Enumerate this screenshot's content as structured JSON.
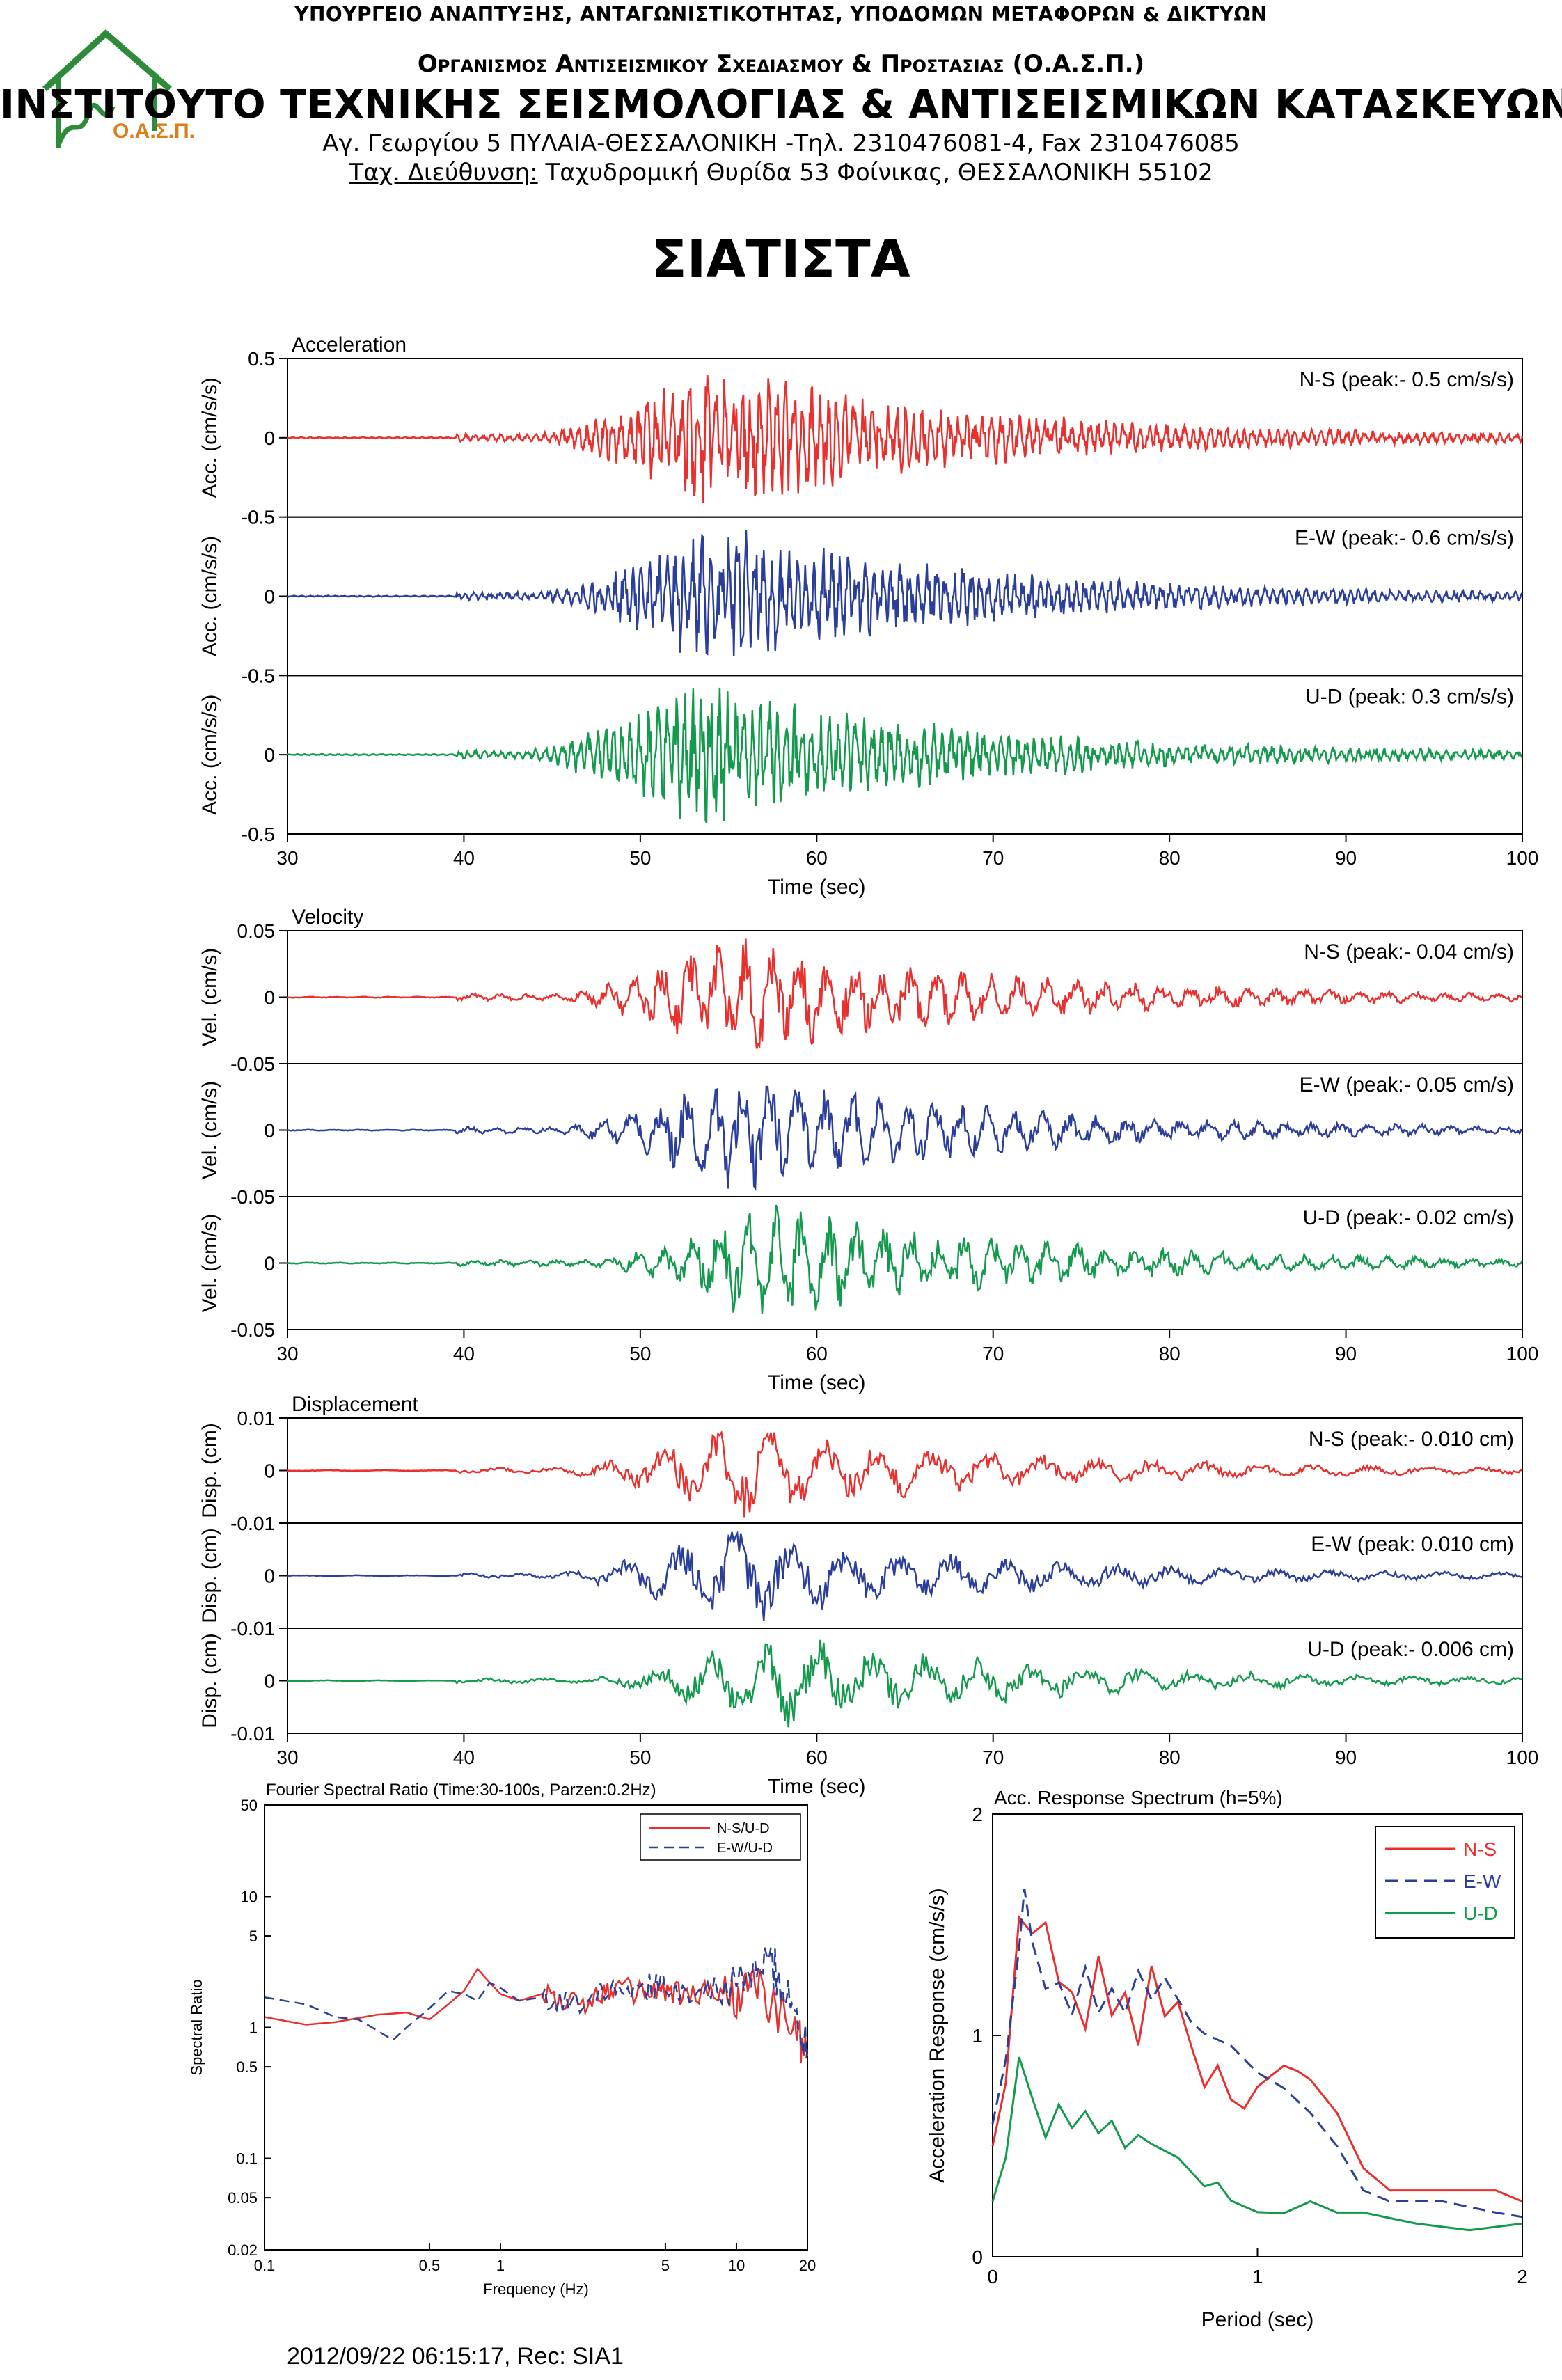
{
  "header": {
    "ministry": "ΥΠΟΥΡΓΕΙΟ ΑΝΑΠΤΥΞΗΣ, ΑΝΤΑΓΩΝΙΣΤΙΚΟΤΗΤΑΣ, ΥΠΟΔΟΜΩΝ ΜΕΤΑΦΟΡΩΝ & ΔΙΚΤΥΩΝ",
    "organization": "Οργανισμος Αντισεισμικου Σχεδιασμου & Προστασιας (Ο.Α.Σ.Π.)",
    "institute": "ΙΝΣΤΙΤΟΥΤΟ ΤΕΧΝΙΚΗΣ ΣΕΙΣΜΟΛΟΓΙΑΣ & ΑΝΤΙΣΕΙΣΜΙΚΩΝ ΚΑΤΑΣΚΕΥΩΝ",
    "address": "Αγ. Γεωργίου 5 ΠΥΛΑΙΑ-ΘΕΣΣΑΛΟΝΙΚΗ -Τηλ. 2310476081-4,  Fax 2310476085",
    "postal_label": "Ταχ. Διεύθυνση:",
    "postal_value": " Ταχυδρομική Θυρίδα 53 Φοίνικας, ΘΕΣΣΑΛΟΝΙΚΗ 55102",
    "logo_text": "Ο.Α.Σ.Π."
  },
  "station": "ΣΙΑΤΙΣΤΑ",
  "footer": "2012/09/22 06:15:17, Rec: SIA1",
  "colors": {
    "ns": "#e8302f",
    "ew": "#2b3f9a",
    "ud": "#139a4c",
    "logo": "#2e8b3a",
    "logo_text": "#e07b1a"
  },
  "chart_data": [
    {
      "type": "line",
      "title": "Acceleration",
      "xlabel": "Time (sec)",
      "ylabel": "Acc. (cm/s/s)",
      "xlim": [
        30,
        100
      ],
      "xticks": [
        "30",
        "40",
        "50",
        "60",
        "70",
        "80",
        "90",
        "100"
      ],
      "ylim": [
        -0.5,
        0.5
      ],
      "ytick_labels": [
        "0.5",
        "0",
        "-0.5"
      ],
      "grid": false,
      "series": [
        {
          "name": "N-S",
          "label": "N-S (peak:- 0.5 cm/s/s)",
          "peak": -0.5,
          "onset": 39.5,
          "center": 55,
          "color": "#e8302f"
        },
        {
          "name": "E-W",
          "label": "E-W (peak:- 0.6 cm/s/s)",
          "peak": -0.6,
          "onset": 39.5,
          "center": 55,
          "color": "#2b3f9a"
        },
        {
          "name": "U-D",
          "label": "U-D (peak: 0.3 cm/s/s)",
          "peak": 0.3,
          "onset": 39.5,
          "center": 54,
          "color": "#139a4c"
        }
      ]
    },
    {
      "type": "line",
      "title": "Velocity",
      "xlabel": "Time (sec)",
      "ylabel": "Vel. (cm/s)",
      "xlim": [
        30,
        100
      ],
      "xticks": [
        "30",
        "40",
        "50",
        "60",
        "70",
        "80",
        "90",
        "100"
      ],
      "ylim": [
        -0.05,
        0.05
      ],
      "ytick_labels": [
        "0.05",
        "0",
        "-0.05"
      ],
      "grid": false,
      "series": [
        {
          "name": "N-S",
          "label": "N-S (peak:- 0.04 cm/s)",
          "peak": -0.04,
          "onset": 39.5,
          "center": 56,
          "color": "#e8302f"
        },
        {
          "name": "E-W",
          "label": "E-W (peak:- 0.05 cm/s)",
          "peak": -0.05,
          "onset": 39.5,
          "center": 56,
          "color": "#2b3f9a"
        },
        {
          "name": "U-D",
          "label": "U-D (peak:- 0.02 cm/s)",
          "peak": -0.02,
          "onset": 39.5,
          "center": 58,
          "color": "#139a4c"
        }
      ]
    },
    {
      "type": "line",
      "title": "Displacement",
      "xlabel": "Time (sec)",
      "ylabel": "Disp. (cm)",
      "xlim": [
        30,
        100
      ],
      "xticks": [
        "30",
        "40",
        "50",
        "60",
        "70",
        "80",
        "90",
        "100"
      ],
      "ylim": [
        -0.01,
        0.01
      ],
      "ytick_labels": [
        "0.01",
        "0",
        "-0.01"
      ],
      "grid": false,
      "series": [
        {
          "name": "N-S",
          "label": "N-S (peak:- 0.010 cm)",
          "peak": -0.01,
          "onset": 39.5,
          "center": 56,
          "color": "#e8302f"
        },
        {
          "name": "E-W",
          "label": "E-W (peak: 0.010 cm)",
          "peak": 0.01,
          "onset": 39.5,
          "center": 56,
          "color": "#2b3f9a"
        },
        {
          "name": "U-D",
          "label": "U-D (peak:- 0.006 cm)",
          "peak": -0.006,
          "onset": 39.5,
          "center": 58,
          "color": "#139a4c"
        }
      ]
    },
    {
      "type": "line",
      "title": "Fourier Spectral Ratio (Time:30-100s, Parzen:0.2Hz)",
      "xlabel": "Frequency (Hz)",
      "ylabel": "Spectral Ratio",
      "xscale": "log",
      "yscale": "log",
      "xlim": [
        0.1,
        20
      ],
      "ylim": [
        0.02,
        50
      ],
      "xtick_values": [
        0.1,
        0.5,
        1,
        5,
        10,
        20
      ],
      "xtick_labels": [
        "0.1",
        "0.5",
        "1",
        "5",
        "10",
        "20"
      ],
      "ytick_values": [
        50,
        10,
        5,
        1,
        0.5,
        0.1,
        0.05,
        0.02
      ],
      "ytick_labels": [
        "50",
        "10",
        "5",
        "1",
        "0.5",
        "0.1",
        "0.05",
        "0.02"
      ],
      "legend_position": "top-right",
      "series": [
        {
          "name": "N-S/U-D",
          "color": "#e8302f",
          "dash": false,
          "points": [
            [
              0.1,
              1.2
            ],
            [
              0.15,
              1.05
            ],
            [
              0.2,
              1.1
            ],
            [
              0.3,
              1.25
            ],
            [
              0.4,
              1.3
            ],
            [
              0.5,
              1.15
            ],
            [
              0.6,
              1.5
            ],
            [
              0.7,
              1.9
            ],
            [
              0.8,
              2.8
            ],
            [
              0.9,
              2.2
            ],
            [
              1.0,
              1.8
            ],
            [
              1.2,
              1.6
            ],
            [
              1.5,
              1.8
            ],
            [
              2.0,
              1.5
            ],
            [
              2.5,
              1.7
            ],
            [
              3.0,
              2.0
            ],
            [
              4.0,
              1.8
            ],
            [
              5.0,
              1.9
            ],
            [
              6.0,
              1.7
            ],
            [
              8.0,
              1.9
            ],
            [
              10.0,
              1.6
            ],
            [
              12.0,
              2.1
            ],
            [
              15.0,
              1.3
            ],
            [
              18.0,
              0.9
            ],
            [
              20.0,
              0.6
            ]
          ]
        },
        {
          "name": "E-W/U-D",
          "color": "#2b3f9a",
          "dash": true,
          "points": [
            [
              0.1,
              1.7
            ],
            [
              0.15,
              1.5
            ],
            [
              0.2,
              1.2
            ],
            [
              0.25,
              1.15
            ],
            [
              0.3,
              0.95
            ],
            [
              0.35,
              0.8
            ],
            [
              0.4,
              1.0
            ],
            [
              0.5,
              1.4
            ],
            [
              0.6,
              1.9
            ],
            [
              0.7,
              1.8
            ],
            [
              0.8,
              1.6
            ],
            [
              0.9,
              2.2
            ],
            [
              1.0,
              2.0
            ],
            [
              1.2,
              1.6
            ],
            [
              1.5,
              1.7
            ],
            [
              2.0,
              1.5
            ],
            [
              3.0,
              2.2
            ],
            [
              4.0,
              2.0
            ],
            [
              5.0,
              2.1
            ],
            [
              7.0,
              1.8
            ],
            [
              10.0,
              2.0
            ],
            [
              12.0,
              2.6
            ],
            [
              14.0,
              3.2
            ],
            [
              16.0,
              1.8
            ],
            [
              18.0,
              1.2
            ],
            [
              20.0,
              0.7
            ]
          ]
        }
      ]
    },
    {
      "type": "line",
      "title": "Acc. Response Spectrum (h=5%)",
      "xlabel": "Period (sec)",
      "ylabel": "Acceleration Response (cm/s/s)",
      "xlim": [
        0,
        2
      ],
      "ylim": [
        0,
        2
      ],
      "xtick_labels": [
        "0",
        "1",
        "2"
      ],
      "ytick_labels": [
        "2",
        "1",
        "0"
      ],
      "legend_position": "top-right",
      "series": [
        {
          "name": "N-S",
          "color": "#e8302f",
          "dash": false,
          "points": [
            [
              0.0,
              0.5
            ],
            [
              0.05,
              0.8
            ],
            [
              0.1,
              1.55
            ],
            [
              0.15,
              1.45
            ],
            [
              0.2,
              1.5
            ],
            [
              0.25,
              1.25
            ],
            [
              0.3,
              1.2
            ],
            [
              0.35,
              1.05
            ],
            [
              0.4,
              1.35
            ],
            [
              0.45,
              1.1
            ],
            [
              0.5,
              1.2
            ],
            [
              0.55,
              0.95
            ],
            [
              0.6,
              1.3
            ],
            [
              0.65,
              1.1
            ],
            [
              0.7,
              1.15
            ],
            [
              0.75,
              0.95
            ],
            [
              0.8,
              0.75
            ],
            [
              0.85,
              0.85
            ],
            [
              0.9,
              0.7
            ],
            [
              0.95,
              0.65
            ],
            [
              1.0,
              0.75
            ],
            [
              1.05,
              0.8
            ],
            [
              1.1,
              0.85
            ],
            [
              1.15,
              0.85
            ],
            [
              1.2,
              0.8
            ],
            [
              1.3,
              0.65
            ],
            [
              1.4,
              0.4
            ],
            [
              1.5,
              0.3
            ],
            [
              1.7,
              0.3
            ],
            [
              1.9,
              0.3
            ],
            [
              2.0,
              0.25
            ]
          ]
        },
        {
          "name": "E-W",
          "color": "#2b3f9a",
          "dash": true,
          "points": [
            [
              0.0,
              0.6
            ],
            [
              0.05,
              0.9
            ],
            [
              0.1,
              1.4
            ],
            [
              0.12,
              1.65
            ],
            [
              0.15,
              1.4
            ],
            [
              0.2,
              1.2
            ],
            [
              0.25,
              1.25
            ],
            [
              0.3,
              1.1
            ],
            [
              0.35,
              1.3
            ],
            [
              0.4,
              1.1
            ],
            [
              0.45,
              1.2
            ],
            [
              0.5,
              1.1
            ],
            [
              0.55,
              1.3
            ],
            [
              0.6,
              1.15
            ],
            [
              0.65,
              1.25
            ],
            [
              0.7,
              1.15
            ],
            [
              0.75,
              1.05
            ],
            [
              0.8,
              1.0
            ],
            [
              0.9,
              0.95
            ],
            [
              1.0,
              0.85
            ],
            [
              1.1,
              0.75
            ],
            [
              1.2,
              0.65
            ],
            [
              1.3,
              0.5
            ],
            [
              1.4,
              0.3
            ],
            [
              1.5,
              0.25
            ],
            [
              1.7,
              0.25
            ],
            [
              1.9,
              0.2
            ],
            [
              2.0,
              0.18
            ]
          ]
        },
        {
          "name": "U-D",
          "color": "#139a4c",
          "dash": false,
          "points": [
            [
              0.0,
              0.25
            ],
            [
              0.05,
              0.45
            ],
            [
              0.1,
              0.9
            ],
            [
              0.15,
              0.7
            ],
            [
              0.2,
              0.55
            ],
            [
              0.25,
              0.7
            ],
            [
              0.3,
              0.6
            ],
            [
              0.35,
              0.65
            ],
            [
              0.4,
              0.55
            ],
            [
              0.45,
              0.6
            ],
            [
              0.5,
              0.5
            ],
            [
              0.55,
              0.55
            ],
            [
              0.6,
              0.5
            ],
            [
              0.7,
              0.45
            ],
            [
              0.8,
              0.3
            ],
            [
              0.85,
              0.35
            ],
            [
              0.9,
              0.25
            ],
            [
              1.0,
              0.2
            ],
            [
              1.1,
              0.2
            ],
            [
              1.2,
              0.25
            ],
            [
              1.3,
              0.2
            ],
            [
              1.4,
              0.2
            ],
            [
              1.6,
              0.15
            ],
            [
              1.8,
              0.12
            ],
            [
              2.0,
              0.15
            ]
          ]
        }
      ]
    }
  ]
}
